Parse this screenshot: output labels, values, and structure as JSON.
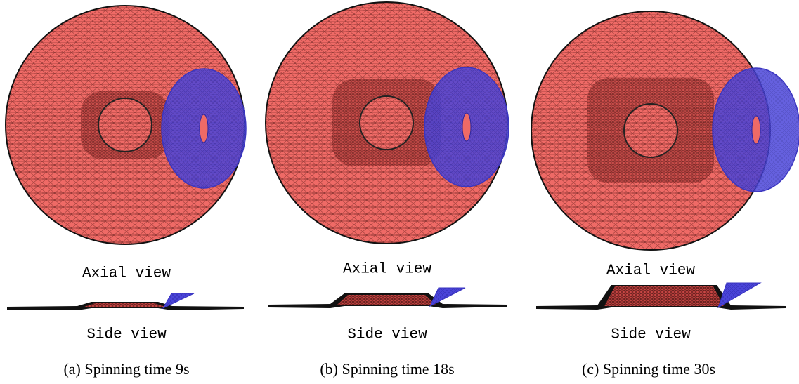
{
  "panels": [
    {
      "axial_label": "Axial view",
      "side_label": "Side view",
      "caption": "(a) Spinning time 9s"
    },
    {
      "axial_label": "Axial view",
      "side_label": "Side view",
      "caption": "(b) Spinning time 18s"
    },
    {
      "axial_label": "Axial view",
      "side_label": "Side view",
      "caption": "(c) Spinning time 30s"
    }
  ]
}
